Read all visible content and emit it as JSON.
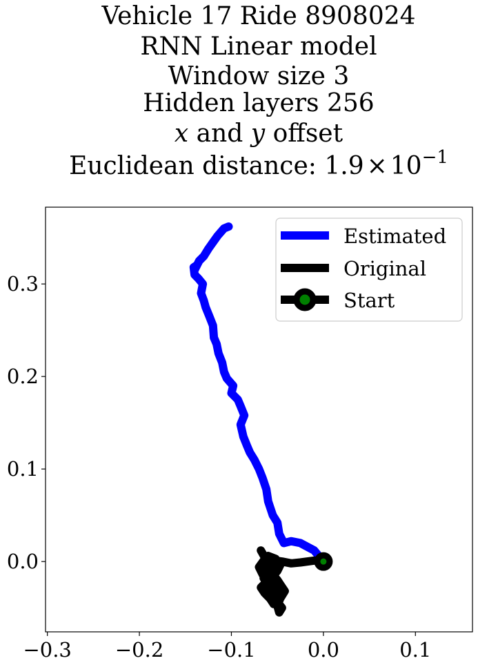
{
  "chart_data": {
    "type": "line",
    "title_lines": [
      "Vehicle 17 Ride 8908024",
      "RNN Linear model",
      "Window size 3",
      "Hidden layers 256"
    ],
    "title_math_line": {
      "var1": "x",
      "and": " and ",
      "var2": "y",
      "rest": " offset"
    },
    "title_distance": {
      "prefix": "Euclidean distance: 1.9",
      "times": "×",
      "base": "10",
      "exponent": "−1"
    },
    "xlim": [
      -0.302,
      0.162
    ],
    "ylim": [
      -0.076,
      0.383
    ],
    "x_ticks": [
      {
        "value": -0.3,
        "label": "−0.3"
      },
      {
        "value": -0.2,
        "label": "−0.2"
      },
      {
        "value": -0.1,
        "label": "−0.1"
      },
      {
        "value": 0.0,
        "label": "0.0"
      },
      {
        "value": 0.1,
        "label": "0.1"
      }
    ],
    "y_ticks": [
      {
        "value": 0.0,
        "label": "0.0"
      },
      {
        "value": 0.1,
        "label": "0.1"
      },
      {
        "value": 0.2,
        "label": "0.2"
      },
      {
        "value": 0.3,
        "label": "0.3"
      }
    ],
    "legend_position": "upper-right",
    "series": [
      {
        "name": "Estimated",
        "color": "#0000ff",
        "x": [
          0.0,
          -0.01,
          -0.025,
          -0.035,
          -0.043,
          -0.048,
          -0.05,
          -0.055,
          -0.06,
          -0.062,
          -0.066,
          -0.07,
          -0.075,
          -0.08,
          -0.083,
          -0.087,
          -0.09,
          -0.086,
          -0.09,
          -0.093,
          -0.1,
          -0.098,
          -0.105,
          -0.108,
          -0.11,
          -0.114,
          -0.116,
          -0.119,
          -0.12,
          -0.124,
          -0.128,
          -0.13,
          -0.133,
          -0.131,
          -0.136,
          -0.14,
          -0.141,
          -0.138,
          -0.14,
          -0.135,
          -0.13,
          -0.125,
          -0.12,
          -0.115,
          -0.108,
          -0.103
        ],
        "y": [
          0.0,
          0.012,
          0.02,
          0.022,
          0.02,
          0.03,
          0.042,
          0.05,
          0.065,
          0.078,
          0.09,
          0.1,
          0.11,
          0.118,
          0.125,
          0.135,
          0.148,
          0.158,
          0.168,
          0.175,
          0.182,
          0.19,
          0.198,
          0.205,
          0.215,
          0.225,
          0.235,
          0.242,
          0.255,
          0.265,
          0.275,
          0.282,
          0.29,
          0.3,
          0.306,
          0.31,
          0.318,
          0.32,
          0.315,
          0.325,
          0.33,
          0.338,
          0.345,
          0.352,
          0.36,
          0.362
        ]
      },
      {
        "name": "Original",
        "color": "#000000",
        "x": [
          0.0,
          -0.01,
          -0.025,
          -0.035,
          -0.045,
          -0.052,
          -0.058,
          -0.062,
          -0.065,
          -0.06,
          -0.056,
          -0.052,
          -0.05,
          -0.045,
          -0.048,
          -0.05,
          -0.047,
          -0.042,
          -0.046,
          -0.05,
          -0.055,
          -0.058,
          -0.054,
          -0.05,
          -0.047,
          -0.05,
          -0.055,
          -0.06,
          -0.066,
          -0.07,
          -0.065,
          -0.06,
          -0.052,
          -0.048,
          -0.052,
          -0.06,
          -0.068,
          -0.064,
          -0.058,
          -0.054,
          -0.05,
          -0.048,
          -0.052,
          -0.058,
          -0.064,
          -0.068
        ],
        "y": [
          0.0,
          0.001,
          -0.001,
          -0.002,
          0.0,
          0.001,
          -0.003,
          -0.01,
          -0.018,
          -0.025,
          -0.03,
          -0.036,
          -0.044,
          -0.05,
          -0.055,
          -0.048,
          -0.04,
          -0.032,
          -0.026,
          -0.02,
          -0.014,
          -0.008,
          -0.003,
          0.001,
          -0.004,
          -0.01,
          -0.016,
          -0.022,
          -0.014,
          -0.006,
          0.001,
          0.006,
          0.003,
          -0.003,
          -0.012,
          -0.02,
          -0.028,
          -0.034,
          -0.04,
          -0.046,
          -0.04,
          -0.03,
          -0.02,
          -0.01,
          0.005,
          0.012
        ]
      }
    ],
    "start_marker": {
      "name": "Start",
      "x": 0.0,
      "y": 0.0,
      "edge_color": "#000000",
      "face_color": "#008000"
    }
  }
}
